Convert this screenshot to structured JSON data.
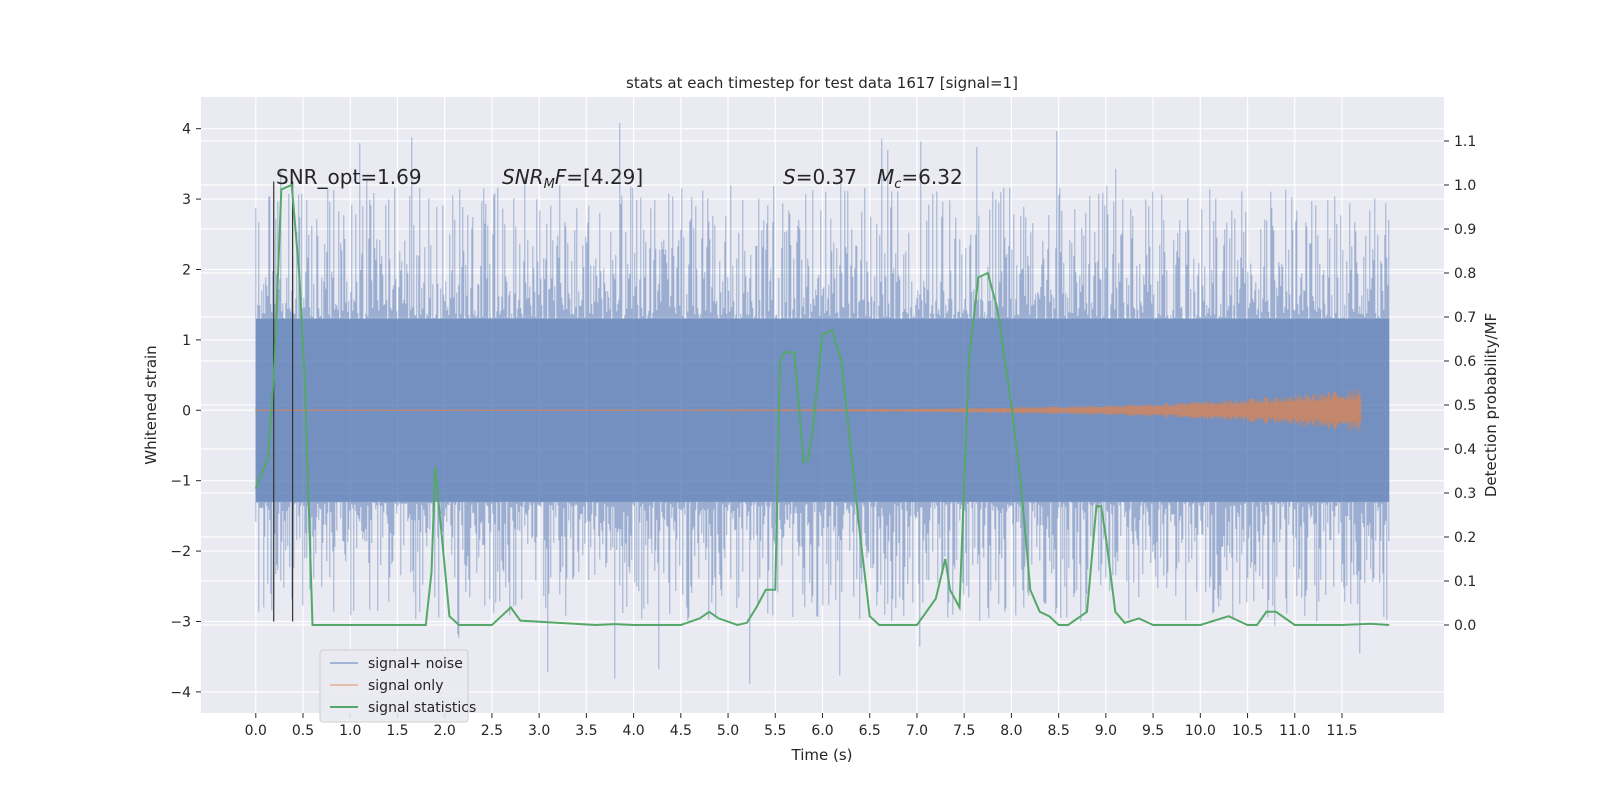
{
  "chart_data": {
    "type": "line",
    "title": "stats at each timestep for test data 1617 [signal=1]",
    "xlabel": "Time (s)",
    "ylabel": "Whitened strain",
    "ylabel_right": "Detection probability/MF",
    "xlim": [
      -0.58,
      12.58
    ],
    "ylim": [
      -4.3,
      4.45
    ],
    "ylim_right": [
      -0.2,
      1.2
    ],
    "x_ticks": [
      "0.0",
      "0.5",
      "1.0",
      "1.5",
      "2.0",
      "2.5",
      "3.0",
      "3.5",
      "4.0",
      "4.5",
      "5.0",
      "5.5",
      "6.0",
      "6.5",
      "7.0",
      "7.5",
      "8.0",
      "8.5",
      "9.0",
      "9.5",
      "10.0",
      "10.5",
      "11.0",
      "11.5"
    ],
    "y_ticks": [
      4,
      3,
      2,
      1,
      0,
      -1,
      -2,
      -3,
      -4
    ],
    "y_tick_labels": [
      "4",
      "3",
      "2",
      "1",
      "0",
      "−1",
      "−2",
      "−3",
      "−4"
    ],
    "y_right_ticks": [
      "1.1",
      "1.0",
      "0.9",
      "0.8",
      "0.7",
      "0.6",
      "0.5",
      "0.4",
      "0.3",
      "0.2",
      "0.1",
      "0.0"
    ],
    "grid": true,
    "background": "#eaeaf2",
    "annotations": [
      {
        "text": "SNR_opt=1.69",
        "x": 0.2,
        "y": 3.3
      },
      {
        "text": "SNR_MF=[4.29]",
        "x": 2.6,
        "y": 3.3
      },
      {
        "text": "S=0.37",
        "x": 5.6,
        "y": 3.3
      },
      {
        "text": "M_c=6.32",
        "x": 6.6,
        "y": 3.3
      }
    ],
    "vlines": [
      {
        "x": 0.19,
        "ymin": -3.0,
        "ymax": 3.25
      },
      {
        "x": 0.39,
        "ymin": -3.0,
        "ymax": 3.25
      }
    ],
    "series": [
      {
        "name": "signal+ noise",
        "color": "#4c72b0",
        "kind": "noise",
        "x_range": [
          0.0,
          12.0
        ],
        "band": [
          -1.3,
          1.3
        ],
        "peaks_max": 4.1,
        "peaks_min": -3.9
      },
      {
        "name": "signal only",
        "color": "#dd8452",
        "kind": "chirp",
        "x_range": [
          0.0,
          11.7
        ],
        "end_amplitude": 0.3
      },
      {
        "name": "signal statistics",
        "color": "#55a868",
        "axis": "right",
        "x": [
          0.0,
          0.13,
          0.2,
          0.27,
          0.38,
          0.46,
          0.52,
          0.6,
          1.8,
          1.86,
          1.9,
          1.97,
          2.05,
          2.15,
          2.5,
          2.6,
          2.7,
          2.8,
          3.6,
          3.8,
          4.0,
          4.5,
          4.7,
          4.8,
          4.9,
          5.1,
          5.2,
          5.3,
          5.4,
          5.5,
          5.55,
          5.6,
          5.7,
          5.75,
          5.8,
          5.85,
          5.9,
          6.0,
          6.1,
          6.2,
          6.3,
          6.4,
          6.5,
          6.6,
          6.8,
          7.0,
          7.2,
          7.3,
          7.35,
          7.45,
          7.55,
          7.65,
          7.75,
          7.85,
          8.0,
          8.1,
          8.2,
          8.3,
          8.4,
          8.5,
          8.6,
          8.8,
          8.9,
          8.95,
          9.0,
          9.1,
          9.2,
          9.35,
          9.5,
          9.8,
          10.0,
          10.3,
          10.4,
          10.5,
          10.6,
          10.7,
          10.8,
          11.0,
          11.5,
          11.8,
          12.0
        ],
        "values": [
          0.31,
          0.38,
          0.6,
          0.99,
          1.0,
          0.8,
          0.55,
          0.0,
          0.0,
          0.12,
          0.36,
          0.2,
          0.02,
          0.0,
          0.0,
          0.02,
          0.04,
          0.01,
          0.0,
          0.002,
          0.0,
          0.0,
          0.015,
          0.03,
          0.015,
          0.0,
          0.005,
          0.04,
          0.08,
          0.08,
          0.6,
          0.62,
          0.62,
          0.5,
          0.37,
          0.38,
          0.45,
          0.66,
          0.67,
          0.6,
          0.4,
          0.2,
          0.02,
          0.0,
          0.0,
          0.0,
          0.06,
          0.15,
          0.08,
          0.04,
          0.6,
          0.79,
          0.8,
          0.72,
          0.5,
          0.32,
          0.08,
          0.03,
          0.02,
          0.0,
          0.0,
          0.03,
          0.27,
          0.27,
          0.2,
          0.03,
          0.005,
          0.015,
          0.0,
          0.0,
          0.0,
          0.02,
          0.01,
          0.0,
          0.0,
          0.03,
          0.03,
          0.0,
          0.0,
          0.003,
          0.0
        ]
      }
    ],
    "legend": {
      "position": "lower-left"
    }
  }
}
